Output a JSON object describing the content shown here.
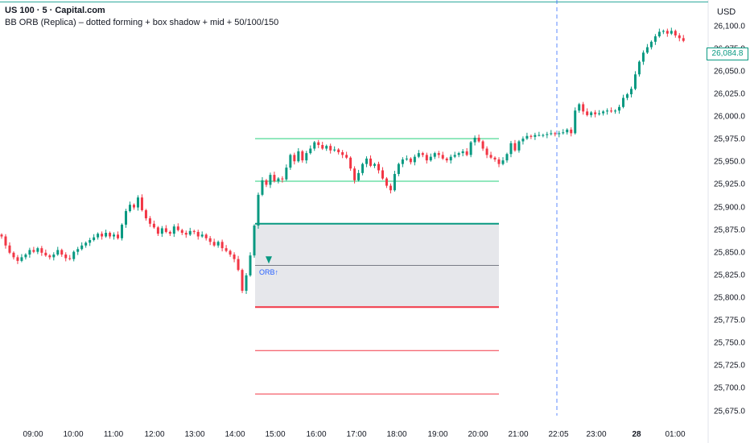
{
  "header": {
    "symbol": "US 100 · 5 · Capital.com",
    "indicator": "BB ORB (Replica) – dotted forming + box shadow + mid + 50/100/150",
    "currency": "USD"
  },
  "price_axis": {
    "labels": [
      "26,100.0",
      "26,075.0",
      "26,050.0",
      "26,025.0",
      "26,000.0",
      "25,975.0",
      "25,950.0",
      "25,925.0",
      "25,900.0",
      "25,875.0",
      "25,850.0",
      "25,825.0",
      "25,800.0",
      "25,775.0",
      "25,750.0",
      "25,725.0",
      "25,700.0",
      "25,675.0"
    ],
    "current_price": "26,084.8"
  },
  "time_axis": {
    "labels": [
      "09:00",
      "10:00",
      "11:00",
      "12:00",
      "13:00",
      "14:00",
      "15:00",
      "16:00",
      "17:00",
      "18:00",
      "19:00",
      "20:00",
      "21:00",
      "22:05",
      "23:00",
      "28",
      "01:00"
    ]
  },
  "orb_label": "ORB↑",
  "colors": {
    "bull": "#089981",
    "bear": "#f23645",
    "top_line": "#26a69a",
    "orb_box": "#e6e7eb",
    "crosshair": "#2962ff"
  },
  "chart_data": {
    "type": "candlestick",
    "y_range": [
      25663,
      26122
    ],
    "orb": {
      "high": 25882,
      "low": 25790,
      "mid": 25836
    },
    "targets_up": [
      25976,
      25929
    ],
    "targets_down": [
      25742,
      25694
    ],
    "top_line_price": 26127,
    "closes": [
      25868,
      25858,
      25850,
      25845,
      25841,
      25845,
      25848,
      25853,
      25851,
      25855,
      25850,
      25847,
      25845,
      25848,
      25853,
      25848,
      25844,
      25843,
      25851,
      25854,
      25858,
      25861,
      25864,
      25867,
      25871,
      25868,
      25872,
      25868,
      25870,
      25866,
      25881,
      25896,
      25903,
      25900,
      25911,
      25897,
      25888,
      25882,
      25878,
      25871,
      25877,
      25873,
      25871,
      25879,
      25875,
      25872,
      25870,
      25874,
      25873,
      25868,
      25870,
      25866,
      25862,
      25858,
      25862,
      25855,
      25852,
      25848,
      25843,
      25831,
      25808,
      25825,
      25847,
      25880,
      25914,
      25930,
      25925,
      25936,
      25929,
      25932,
      25931,
      25944,
      25958,
      25951,
      25962,
      25952,
      25960,
      25965,
      25972,
      25969,
      25965,
      25968,
      25963,
      25964,
      25961,
      25958,
      25955,
      25943,
      25930,
      25938,
      25948,
      25954,
      25946,
      25948,
      25941,
      25932,
      25924,
      25919,
      25937,
      25948,
      25953,
      25954,
      25950,
      25956,
      25960,
      25958,
      25952,
      25956,
      25960,
      25958,
      25954,
      25952,
      25956,
      25958,
      25960,
      25962,
      25958,
      25972,
      25977,
      25973,
      25965,
      25958,
      25955,
      25953,
      25948,
      25952,
      25959,
      25971,
      25963,
      25973,
      25976,
      25979,
      25978,
      25980,
      25980,
      25980,
      25981,
      25982,
      25981,
      25982,
      25983,
      25986,
      25982,
      26007,
      26014,
      26006,
      26002,
      26005,
      26003,
      26004,
      26006,
      26007,
      26006,
      26007,
      26011,
      26021,
      26025,
      26031,
      26047,
      26061,
      26071,
      26077,
      26083,
      26089,
      26094,
      26095,
      26092,
      26095,
      26090,
      26087,
      26084
    ]
  }
}
